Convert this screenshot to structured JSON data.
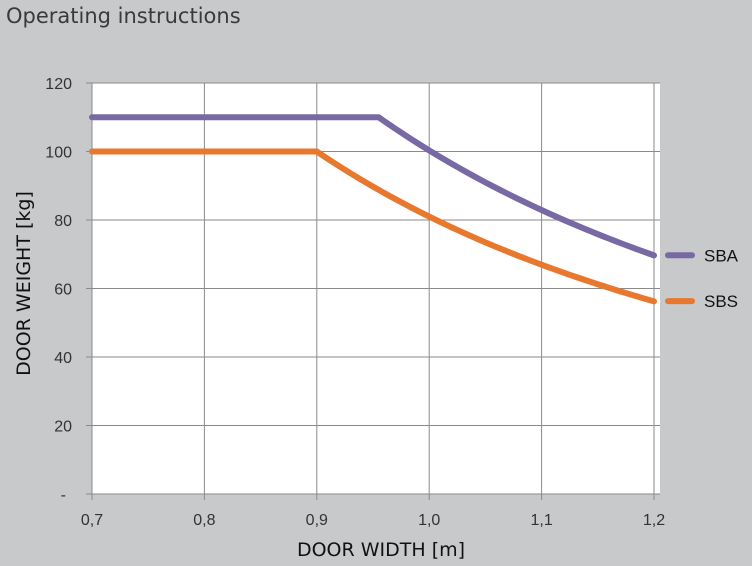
{
  "header": {
    "title": "Operating instructions"
  },
  "chart_data": {
    "type": "line",
    "title": "",
    "xlabel": "DOOR WIDTH [m]",
    "ylabel": "DOOR WEIGHT [kg]",
    "xlim": [
      0.7,
      1.2
    ],
    "ylim": [
      0,
      120
    ],
    "xticks": [
      0.7,
      0.8,
      0.9,
      1.0,
      1.1,
      1.2
    ],
    "xtick_labels": [
      "0,7",
      "0,8",
      "0,9",
      "1,0",
      "1,1",
      "1,2"
    ],
    "yticks": [
      0,
      20,
      40,
      60,
      80,
      100,
      120
    ],
    "ytick_labels": [
      "-",
      "20",
      "40",
      "60",
      "80",
      "100",
      "120"
    ],
    "grid": true,
    "legend_placement": "right",
    "series": [
      {
        "name": "SBA",
        "color": "#7868a4",
        "x": [
          0.7,
          0.955,
          1.0,
          1.05,
          1.1,
          1.15,
          1.2
        ],
        "y": [
          110,
          110,
          100.3,
          91,
          82.9,
          75.9,
          69.7
        ]
      },
      {
        "name": "SBS",
        "color": "#e8782d",
        "x": [
          0.7,
          0.9,
          0.95,
          1.0,
          1.05,
          1.1,
          1.15,
          1.2
        ],
        "y": [
          100,
          100,
          89.8,
          81,
          73.5,
          66.9,
          61.2,
          56.3
        ]
      }
    ]
  }
}
